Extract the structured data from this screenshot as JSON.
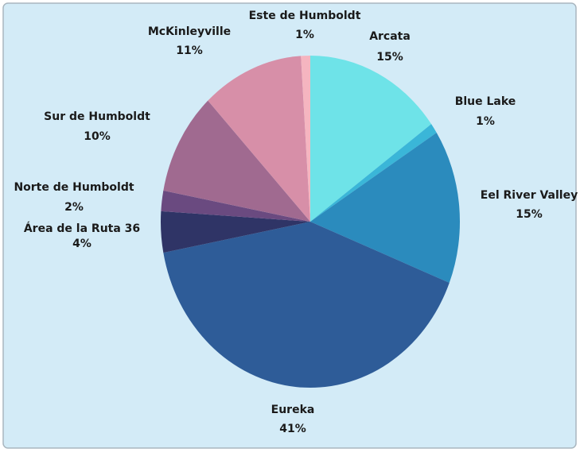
{
  "chart_data": {
    "type": "pie",
    "categories": [
      "Arcata",
      "Blue Lake",
      "Eel River Valley",
      "Eureka",
      "Área de la Ruta 36",
      "Norte de Humboldt",
      "Sur de Humboldt",
      "McKinleyville",
      "Este de Humboldt"
    ],
    "values": [
      15,
      1,
      15,
      41,
      4,
      2,
      10,
      11,
      1
    ],
    "value_labels": [
      "15%",
      "1%",
      "15%",
      "41%",
      "4%",
      "2%",
      "10%",
      "11%",
      "1%"
    ],
    "colors": [
      "#6ee3e8",
      "#3ab6d8",
      "#2b8bbd",
      "#2e5c98",
      "#2f3466",
      "#6a4a80",
      "#a06a90",
      "#d78fa8",
      "#f5b5c0"
    ]
  }
}
